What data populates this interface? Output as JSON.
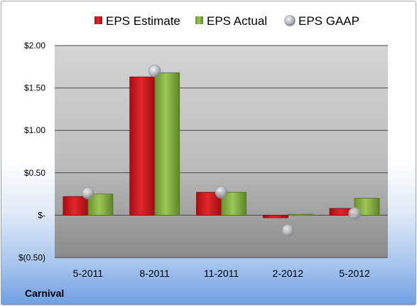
{
  "company": "Carnival",
  "colors": {
    "estimate": "#d0191f",
    "actual": "#86b043",
    "gaap": "#b9bcc2"
  },
  "chart_data": {
    "type": "bar",
    "title": "",
    "xlabel": "",
    "ylabel": "",
    "categories": [
      "5-2011",
      "8-2011",
      "11-2011",
      "2-2012",
      "5-2012"
    ],
    "series": [
      {
        "name": "EPS Estimate",
        "kind": "bar",
        "values": [
          0.22,
          1.63,
          0.27,
          -0.03,
          0.08
        ]
      },
      {
        "name": "EPS Actual",
        "kind": "bar",
        "values": [
          0.25,
          1.68,
          0.27,
          0.01,
          0.2
        ]
      },
      {
        "name": "EPS GAAP",
        "kind": "marker",
        "values": [
          0.26,
          1.7,
          0.27,
          -0.18,
          0.02
        ]
      }
    ],
    "ylim": [
      -0.5,
      2.0
    ],
    "yticks": [
      -0.5,
      0,
      0.5,
      1.0,
      1.5,
      2.0
    ],
    "ytick_labels": [
      "$(0.50)",
      "$-",
      "$0.50",
      "$1.00",
      "$1.50",
      "$2.00"
    ],
    "grid": true,
    "legend_position": "top"
  }
}
